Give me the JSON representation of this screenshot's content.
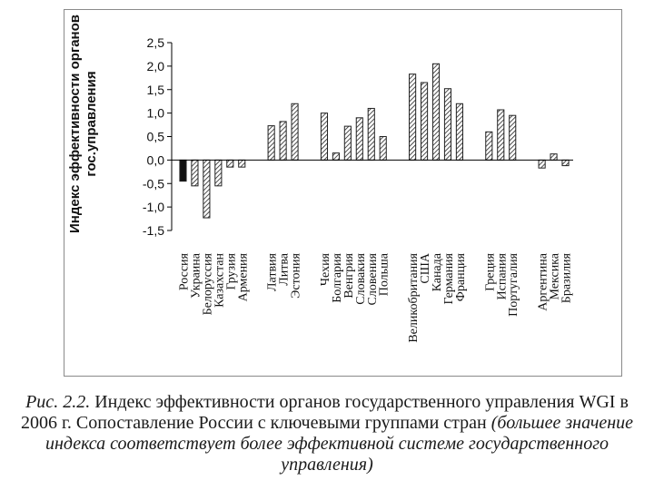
{
  "chart_data": {
    "type": "bar",
    "ylabel": "Индекс эффективности органов гос.управления",
    "ylim": [
      -1.5,
      2.5
    ],
    "yticks": [
      "2,5",
      "2,0",
      "1,5",
      "1,0",
      "0,5",
      "0,0",
      "-0,5",
      "-1,0",
      "-1,5"
    ],
    "grid": false,
    "categories": [
      "Россия",
      "Украина",
      "Белоруссия",
      "Казахстан",
      "Грузия",
      "Армения",
      "Латвия",
      "Литва",
      "Эстония",
      "Чехия",
      "Болгария",
      "Венгрия",
      "Словакия",
      "Словения",
      "Польша",
      "Великобритания",
      "США",
      "Канада",
      "Германия",
      "Франция",
      "Греция",
      "Испания",
      "Португалия",
      "Аргентина",
      "Мексика",
      "Бразилия"
    ],
    "groups": [
      6,
      3,
      6,
      5,
      3,
      3
    ],
    "values": [
      -0.45,
      -0.55,
      -1.23,
      -0.55,
      -0.15,
      -0.15,
      0.73,
      0.82,
      1.2,
      1.0,
      0.15,
      0.72,
      0.9,
      1.1,
      0.5,
      1.83,
      1.65,
      2.05,
      1.52,
      1.2,
      0.6,
      1.07,
      0.95,
      -0.17,
      0.13,
      -0.12
    ],
    "highlight": "Россия",
    "colors": {
      "highlight": "#111111",
      "hatch": "#222222",
      "axis": "#000000"
    }
  },
  "caption": {
    "lead": "Рис. 2.2.",
    "main": "Индекс эффективности органов государственного управления WGI в 2006 г. Сопоставление России с ключевыми группами стран",
    "note": "(большее значение индекса соответствует более эффективной системе государственного управления)"
  }
}
